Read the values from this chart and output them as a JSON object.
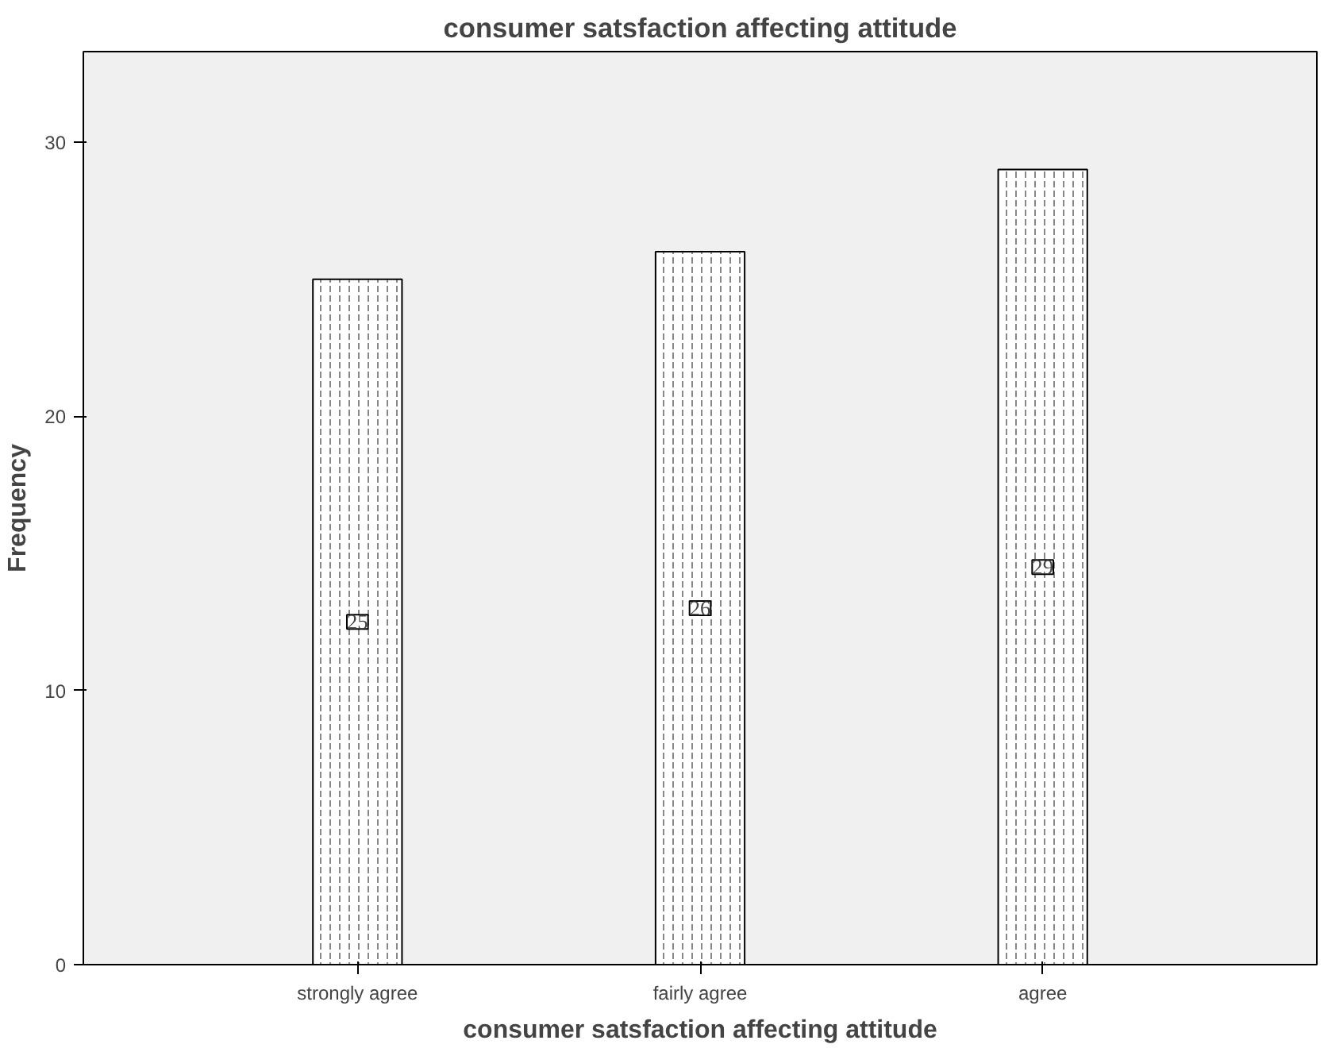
{
  "chart_data": {
    "type": "bar",
    "title": "consumer satsfaction affecting attitude",
    "xlabel": "consumer satsfaction affecting attitude",
    "ylabel": "Frequency",
    "categories": [
      "strongly agree",
      "fairly agree",
      "agree"
    ],
    "values": [
      25,
      26,
      29
    ],
    "color": "#ffffff",
    "ylim": [
      0,
      33.3
    ],
    "yticks": [
      0,
      10,
      20,
      30
    ],
    "grid": false,
    "data_labels": true
  }
}
